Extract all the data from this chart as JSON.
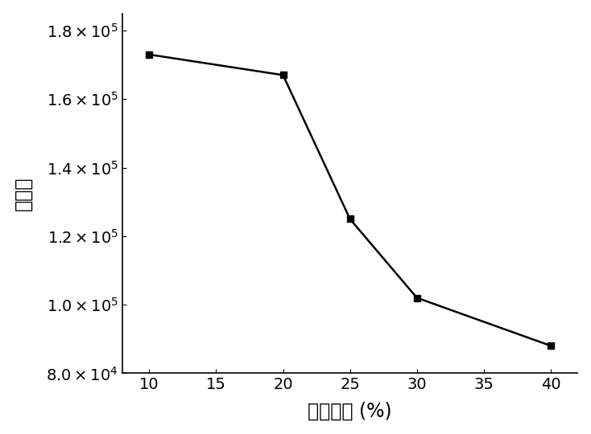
{
  "x": [
    10,
    20,
    25,
    30,
    40
  ],
  "y": [
    173000,
    167000,
    125000,
    102000,
    88000
  ],
  "xlabel": "乙腼含量 (%)",
  "ylabel": "峰面积",
  "xlim": [
    8,
    42
  ],
  "ylim": [
    80000,
    185000
  ],
  "xticks": [
    10,
    15,
    20,
    25,
    30,
    35,
    40
  ],
  "yticks": [
    80000,
    100000,
    120000,
    140000,
    160000,
    180000
  ],
  "ytick_labels": [
    "$8.0\\times10^4$",
    "$1.0\\times10^5$",
    "$1.2\\times10^5$",
    "$1.4\\times10^5$",
    "$1.6\\times10^5$",
    "$1.8\\times10^5$"
  ],
  "line_color": "#000000",
  "marker": "s",
  "marker_size": 6,
  "line_width": 1.8,
  "background_color": "#ffffff",
  "xlabel_fontsize": 17,
  "ylabel_fontsize": 17,
  "tick_fontsize": 14,
  "ylabel_rotation": 90,
  "ylabel_labelpad": 12
}
